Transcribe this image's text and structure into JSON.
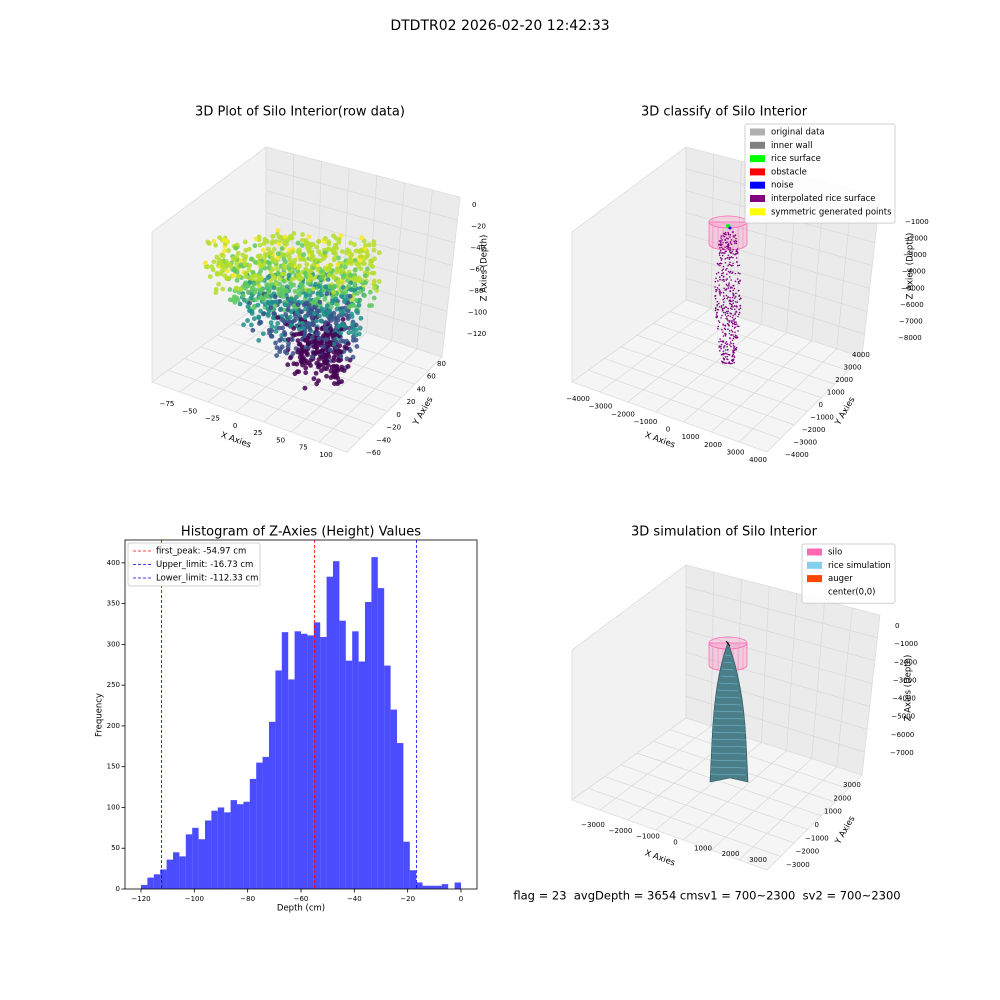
{
  "title": "DTDTR02 2026-02-20 12:42:33",
  "chart_data": [
    {
      "type": "scatter3d",
      "title": "3D Plot of Silo Interior(row data)",
      "xlabel": "X Axies",
      "ylabel": "Y Axies",
      "zlabel": "Z Axies (Depth)",
      "xticks": [
        {
          "value": -75,
          "label": "−75"
        },
        {
          "value": -50,
          "label": "−50"
        },
        {
          "value": -25,
          "label": "−25"
        },
        0,
        25,
        50,
        75,
        100
      ],
      "yticks": [
        {
          "value": -60,
          "label": "−60"
        },
        {
          "value": -40,
          "label": "−40"
        },
        {
          "value": -20,
          "label": "−20"
        },
        0,
        20,
        40,
        60,
        80
      ],
      "zticks": [
        0,
        {
          "value": -20,
          "label": "−20"
        },
        {
          "value": -40,
          "label": "−40"
        },
        {
          "value": -60,
          "label": "−60"
        },
        {
          "value": -80,
          "label": "−80"
        },
        {
          "value": -100,
          "label": "−100"
        },
        {
          "value": -120,
          "label": "−120"
        }
      ]
    },
    {
      "type": "scatter3d",
      "title": "3D classify of Silo Interior",
      "xlabel": "X Axies",
      "ylabel": "Y Axies",
      "zlabel": "Z Axies (Depth)",
      "xticks": [
        {
          "value": -4000,
          "label": "−4000"
        },
        {
          "value": -3000,
          "label": "−3000"
        },
        {
          "value": -2000,
          "label": "−2000"
        },
        {
          "value": -1000,
          "label": "−1000"
        },
        0,
        1000,
        2000,
        3000,
        4000
      ],
      "yticks": [
        {
          "value": -4000,
          "label": "−4000"
        },
        {
          "value": -3000,
          "label": "−3000"
        },
        {
          "value": -2000,
          "label": "−2000"
        },
        {
          "value": -1000,
          "label": "−1000"
        },
        0,
        1000,
        2000,
        3000,
        4000
      ],
      "zticks": [
        {
          "value": -1000,
          "label": "−1000"
        },
        {
          "value": -2000,
          "label": "−2000"
        },
        {
          "value": -3000,
          "label": "−3000"
        },
        {
          "value": -4000,
          "label": "−4000"
        },
        {
          "value": -5000,
          "label": "−5000"
        },
        {
          "value": -6000,
          "label": "−6000"
        },
        {
          "value": -7000,
          "label": "−7000"
        },
        {
          "value": -8000,
          "label": "−8000"
        }
      ],
      "legend": [
        {
          "name": "original data",
          "color": "#b0b0b0"
        },
        {
          "name": "inner wall",
          "color": "#808080"
        },
        {
          "name": "rice surface",
          "color": "#00ff00"
        },
        {
          "name": "obstacle",
          "color": "#ff0000"
        },
        {
          "name": "noise",
          "color": "#0000ff"
        },
        {
          "name": "interpolated rice surface",
          "color": "#800080"
        },
        {
          "name": "symmetric generated points",
          "color": "#ffff00"
        }
      ]
    },
    {
      "type": "histogram",
      "title": "Histogram of Z-Axies (Height) Values",
      "xlabel": "Depth (cm)",
      "ylabel": "Frequency",
      "color": "#0000ff",
      "alpha": 0.7,
      "bins": [
        -120,
        -117.6,
        -115.2,
        -112.8,
        -110.4,
        -108,
        -105.6,
        -103.2,
        -100.8,
        -98.4,
        -96,
        -93.6,
        -91.2,
        -88.8,
        -86.4,
        -84,
        -81.6,
        -79.2,
        -76.8,
        -74.4,
        -72,
        -69.6,
        -67.2,
        -64.8,
        -62.4,
        -60,
        -57.6,
        -55.2,
        -52.8,
        -50.4,
        -48,
        -45.6,
        -43.2,
        -40.8,
        -38.4,
        -36,
        -33.6,
        -31.2,
        -28.8,
        -26.4,
        -24,
        -21.6,
        -19.2,
        -16.8,
        -14.4,
        -12,
        -9.6,
        -7.2,
        -4.8,
        -2.4,
        0
      ],
      "values": [
        5,
        14,
        18,
        24,
        36,
        45,
        40,
        67,
        75,
        61,
        84,
        96,
        100,
        94,
        109,
        104,
        107,
        135,
        155,
        162,
        205,
        268,
        315,
        257,
        316,
        313,
        311,
        327,
        309,
        383,
        402,
        329,
        280,
        316,
        279,
        352,
        407,
        369,
        274,
        220,
        179,
        58,
        23,
        8,
        4,
        4,
        4,
        6,
        0,
        8
      ],
      "xlim": [
        -126,
        6
      ],
      "ylim": [
        0,
        428
      ],
      "xticks": [
        {
          "value": -120,
          "label": "−120"
        },
        {
          "value": -100,
          "label": "−100"
        },
        {
          "value": -80,
          "label": "−80"
        },
        {
          "value": -60,
          "label": "−60"
        },
        {
          "value": -40,
          "label": "−40"
        },
        {
          "value": -20,
          "label": "−20"
        },
        0
      ],
      "yticks": [
        0,
        50,
        100,
        150,
        200,
        250,
        300,
        350,
        400
      ],
      "lines": [
        {
          "name": "first_peak: -54.97 cm",
          "value": -54.97,
          "color": "#ff0000"
        },
        {
          "name": "Upper_limit: -16.73 cm",
          "value": -16.73,
          "color": "#0000ff"
        },
        {
          "name": "Lower_limit: -112.33 cm",
          "value": -112.33,
          "color": "#0000ff"
        }
      ]
    },
    {
      "type": "surface3d",
      "title": "3D simulation of Silo Interior",
      "xlabel": "X Axies",
      "ylabel": "Y Axies",
      "zlabel": "Z Axies (Depth)",
      "xticks": [
        {
          "value": -3000,
          "label": "−3000"
        },
        {
          "value": -2000,
          "label": "−2000"
        },
        {
          "value": -1000,
          "label": "−1000"
        },
        0,
        1000,
        2000,
        3000
      ],
      "yticks": [
        {
          "value": -3000,
          "label": "−3000"
        },
        {
          "value": -2000,
          "label": "−2000"
        },
        {
          "value": -1000,
          "label": "−1000"
        },
        0,
        1000,
        2000,
        3000
      ],
      "zticks": [
        0,
        {
          "value": -1000,
          "label": "−1000"
        },
        {
          "value": -2000,
          "label": "−2000"
        },
        {
          "value": -3000,
          "label": "−3000"
        },
        {
          "value": -4000,
          "label": "−4000"
        },
        {
          "value": -5000,
          "label": "−5000"
        },
        {
          "value": -6000,
          "label": "−6000"
        },
        {
          "value": -7000,
          "label": "−7000"
        }
      ],
      "legend": [
        {
          "name": "silo",
          "color": "#ff69b4"
        },
        {
          "name": "rice simulation",
          "color": "#87ceeb"
        },
        {
          "name": "auger",
          "color": "#ff4500"
        },
        {
          "name": "center(0,0)",
          "color": "#ffffff"
        }
      ]
    }
  ],
  "footer": "flag = 23  avgDepth = 3654 cmsv1 = 700~2300  sv2 = 700~2300"
}
